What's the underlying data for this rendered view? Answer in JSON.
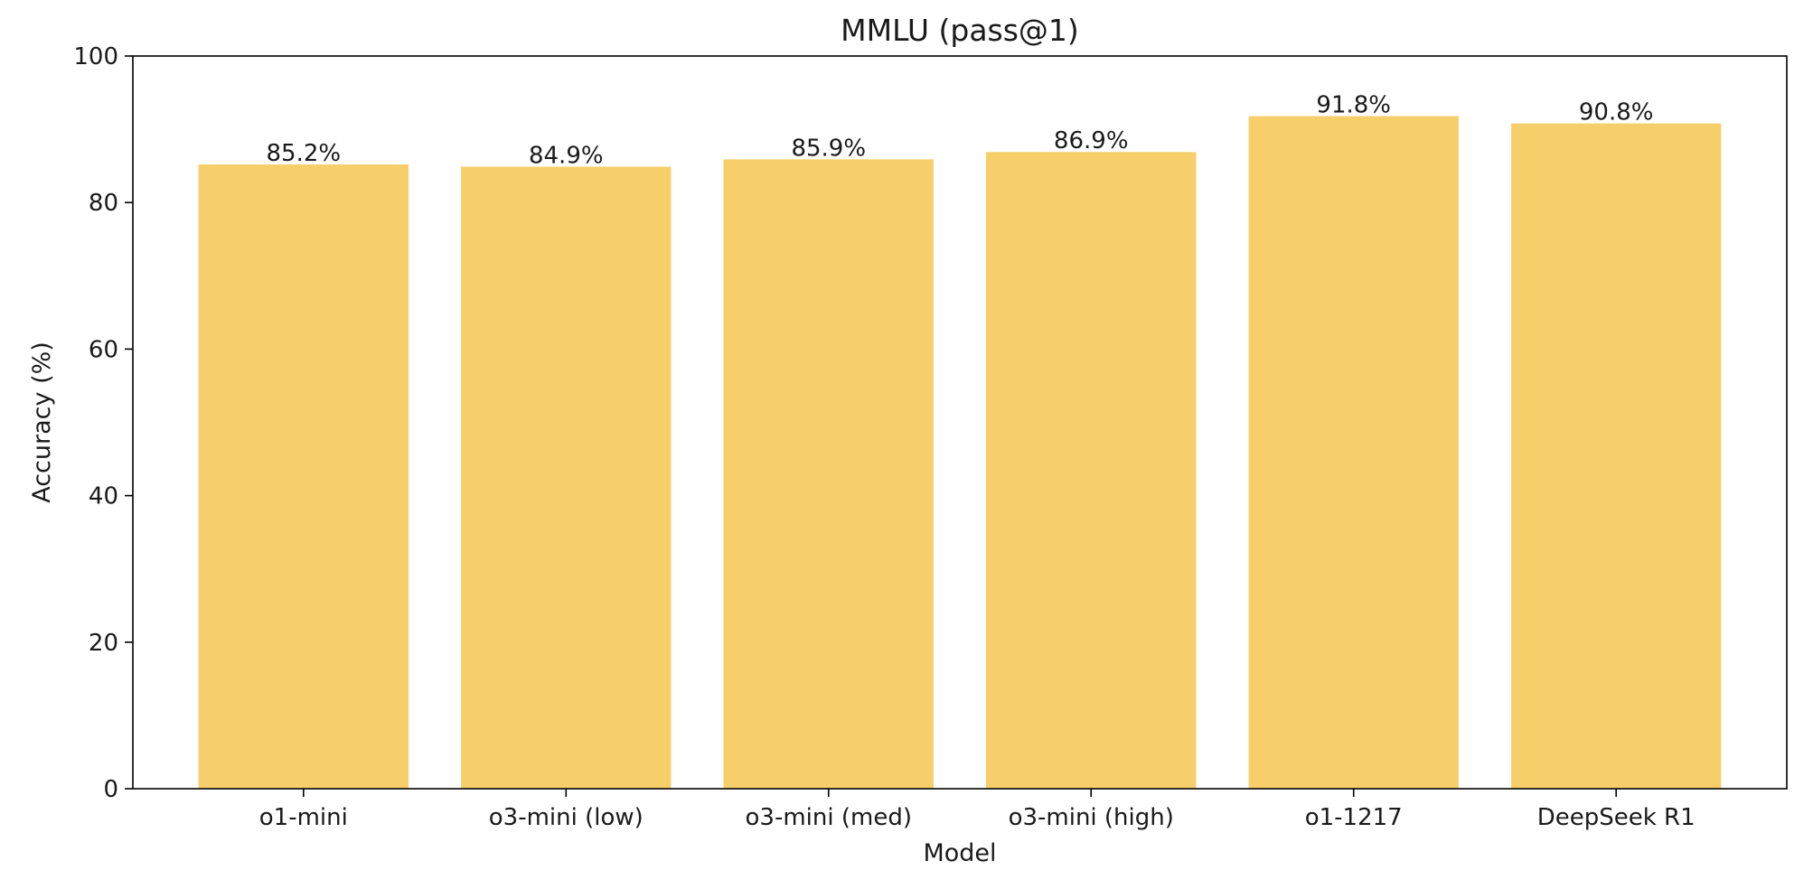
{
  "chart_data": {
    "type": "bar",
    "title": "MMLU (pass@1)",
    "xlabel": "Model",
    "ylabel": "Accuracy (%)",
    "categories": [
      "o1-mini",
      "o3-mini (low)",
      "o3-mini (med)",
      "o3-mini (high)",
      "o1-1217",
      "DeepSeek R1"
    ],
    "values": [
      85.2,
      84.9,
      85.9,
      86.9,
      91.8,
      90.8
    ],
    "value_labels": [
      "85.2%",
      "84.9%",
      "85.9%",
      "86.9%",
      "91.8%",
      "90.8%"
    ],
    "ylim": [
      0,
      100
    ],
    "yticks": [
      0,
      20,
      40,
      60,
      80,
      100
    ],
    "grid": false,
    "legend": "none",
    "bar_color": "#f6cf6b"
  }
}
